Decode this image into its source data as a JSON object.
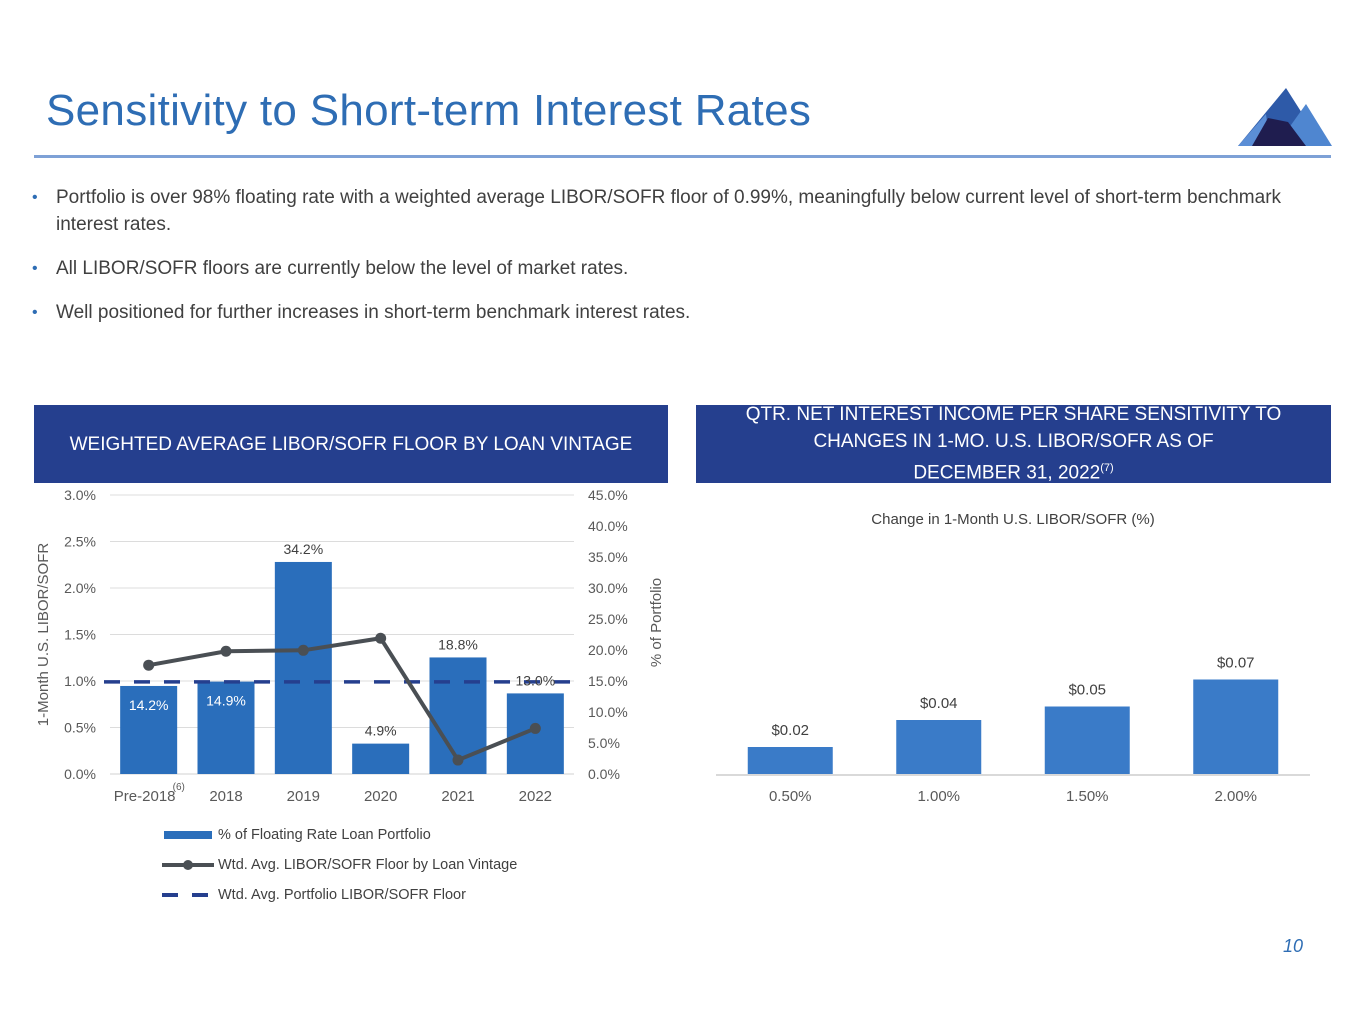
{
  "header": {
    "title": "Sensitivity to Short-term Interest Rates",
    "logo_icon": "mountain-logo-icon"
  },
  "bullets": [
    "Portfolio is over 98% floating rate with a weighted average LIBOR/SOFR floor of 0.99%, meaningfully below current level of short-term benchmark interest rates.",
    "All LIBOR/SOFR floors are currently below the level of market rates.",
    "Well positioned for further increases in short-term benchmark interest rates."
  ],
  "left_panel": {
    "heading": "WEIGHTED AVERAGE LIBOR/SOFR FLOOR BY LOAN VINTAGE"
  },
  "right_panel": {
    "heading_line1": "QTR. NET INTEREST INCOME PER SHARE SENSITIVITY TO",
    "heading_line2": "CHANGES IN 1-MO. U.S. LIBOR/SOFR AS OF",
    "heading_line3": "DECEMBER 31, 2022",
    "heading_footnote": "(7)"
  },
  "page_number": "10",
  "colors": {
    "bar": "#2a6ebb",
    "line": "#4a4f54",
    "dash": "#253f8e",
    "header_bg": "#253f8e",
    "title": "#2e6db4",
    "bar_right": "#3a7bc8"
  },
  "chart_data": [
    {
      "type": "bar+line",
      "title": "WEIGHTED AVERAGE LIBOR/SOFR FLOOR BY LOAN VINTAGE",
      "categories": [
        "Pre-2018",
        "2018",
        "2019",
        "2020",
        "2021",
        "2022"
      ],
      "category_footnote": {
        "index": 0,
        "text": "(6)"
      },
      "ylabel_left": "1-Month U.S. LIBOR/SOFR",
      "ylabel_right": "% of Portfolio",
      "ylim_left": [
        0,
        3.0
      ],
      "ylim_right": [
        0,
        45.0
      ],
      "yticks_left": [
        "0.0%",
        "0.5%",
        "1.0%",
        "1.5%",
        "2.0%",
        "2.5%",
        "3.0%"
      ],
      "yticks_right": [
        "0.0%",
        "5.0%",
        "10.0%",
        "15.0%",
        "20.0%",
        "25.0%",
        "30.0%",
        "35.0%",
        "40.0%",
        "45.0%"
      ],
      "grid": true,
      "series": [
        {
          "name": "% of Floating Rate Loan Portfolio",
          "type": "bar",
          "axis": "right",
          "values": [
            14.2,
            14.9,
            34.2,
            4.9,
            18.8,
            13.0
          ],
          "labels": [
            "14.2%",
            "14.9%",
            "34.2%",
            "4.9%",
            "18.8%",
            "13.0%"
          ]
        },
        {
          "name": "Wtd. Avg. LIBOR/SOFR Floor by Loan Vintage",
          "type": "line",
          "axis": "left",
          "values": [
            1.17,
            1.32,
            1.33,
            1.46,
            0.15,
            0.49
          ]
        },
        {
          "name": "Wtd. Avg. Portfolio LIBOR/SOFR Floor",
          "type": "dashed-line",
          "axis": "left",
          "value": 0.99
        }
      ],
      "legend": "bottom"
    },
    {
      "type": "bar",
      "title": "Change in 1-Month U.S. LIBOR/SOFR (%)",
      "categories": [
        "0.50%",
        "1.00%",
        "1.50%",
        "2.00%"
      ],
      "values": [
        0.02,
        0.04,
        0.05,
        0.07
      ],
      "labels": [
        "$0.02",
        "$0.04",
        "$0.05",
        "$0.07"
      ],
      "ylim": [
        0,
        0.1
      ],
      "grid": false
    }
  ]
}
